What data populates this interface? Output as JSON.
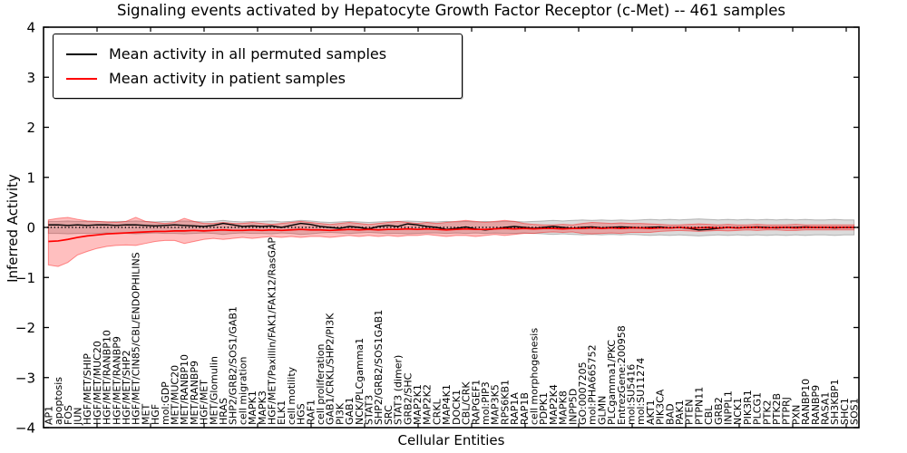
{
  "chart_data": {
    "type": "line",
    "title": "Signaling events activated by Hepatocyte Growth Factor Receptor (c-Met) -- 461 samples",
    "xlabel": "Cellular Entities",
    "ylabel": "Inferred Activity",
    "ylim": [
      -4,
      4
    ],
    "yticks": [
      -4,
      -3,
      -2,
      -1,
      0,
      1,
      2,
      3,
      4
    ],
    "grid": false,
    "legend_position": "upper left",
    "background": "#ffffff",
    "axis_color": "#000000",
    "zero_line": {
      "style": "dotted",
      "color": "#000000",
      "value": 0
    },
    "categories": [
      "AP1",
      "apoptosis",
      "FOS",
      "JUN",
      "HGF/MET/SHIP",
      "HGF/MET/MUC20",
      "HGF/MET/RANBP10",
      "HGF/MET/RANBP9",
      "HGF/MET/SHP2",
      "HGF/MET/CIN85/CBL/ENDOPHILINS",
      "MET",
      "HGF",
      "mol:GDP",
      "MET/MUC20",
      "MET/RANBP10",
      "MET/RANBP9",
      "HGF/MET",
      "MET/Glomulin",
      "HRAS",
      "SHP2/GRB2/SOS1/GAB1",
      "cell migration",
      "MAPK1",
      "MAPK3",
      "HGF/MET/Paxillin/FAK1/FAK12/RasGAP",
      "ELK1",
      "cell motility",
      "HGS",
      "RAF1",
      "cell proliferation",
      "GAB1/CRKL/SHP2/PI3K",
      "PI3K",
      "GAB1",
      "NCK/PLCgamma1",
      "STAT3",
      "SHP2/GRB2/SOS1GAB1",
      "SRC",
      "STAT3 (dimer)",
      "GRB2/SHC",
      "MAP2K1",
      "MAP2K2",
      "CRKL",
      "MAP4K1",
      "DOCK1",
      "CBL/CRK",
      "RAPGEF1",
      "mol:PIP3",
      "MAP3K5",
      "RPS6KB1",
      "RAP1A",
      "RAP1B",
      "cell morphogenesis",
      "PDPK1",
      "MAP2K4",
      "MAPK8",
      "INPP5D",
      "GO:0007205",
      "mol:PHA665752",
      "GLMN",
      "PLCgamma1/PKC",
      "EntrezGene:200958",
      "mol:SU5416",
      "mol:SU11274",
      "AKT1",
      "PIK3CA",
      "BAD",
      "PAK1",
      "PTEN",
      "PTPN11",
      "CBL",
      "GRB2",
      "INPPL1",
      "NCK1",
      "PIK3R1",
      "PLCG1",
      "PTK2",
      "PTK2B",
      "PTPRJ",
      "PXN",
      "RANBP10",
      "RANBP9",
      "RASA1",
      "SH3KBP1",
      "SHC1",
      "SOS1"
    ],
    "series": [
      {
        "name": "Mean activity in all permuted samples",
        "color": "#000000",
        "style": "solid",
        "values": [
          0.05,
          0.05,
          0.04,
          0.05,
          0.04,
          0.05,
          0.05,
          0.04,
          0.05,
          0.05,
          0.04,
          0.03,
          0.04,
          0.05,
          0.04,
          0.03,
          0.02,
          0.04,
          0.08,
          0.05,
          0.02,
          0.03,
          0.02,
          0.03,
          0.0,
          0.04,
          0.08,
          0.06,
          0.02,
          0.0,
          -0.02,
          0.02,
          0.0,
          -0.03,
          0.02,
          0.04,
          0.02,
          0.07,
          0.05,
          0.02,
          0.0,
          -0.04,
          -0.02,
          0.01,
          -0.03,
          -0.05,
          -0.03,
          0.0,
          0.02,
          0.0,
          -0.02,
          0.0,
          0.02,
          0.0,
          -0.02,
          0.0,
          0.01,
          -0.01,
          0.0,
          0.01,
          0.0,
          -0.01,
          0.0,
          0.01,
          -0.01,
          0.0,
          -0.02,
          -0.05,
          -0.04,
          -0.02,
          0.0,
          -0.01,
          0.0,
          0.01,
          0.0,
          -0.01,
          0.0,
          0.0,
          0.01,
          0.0,
          0.0,
          -0.01,
          0.0,
          0.0
        ],
        "band": {
          "color": "#000000",
          "opacity": 0.14,
          "upper": [
            0.12,
            0.12,
            0.13,
            0.12,
            0.12,
            0.12,
            0.11,
            0.12,
            0.12,
            0.13,
            0.12,
            0.11,
            0.12,
            0.12,
            0.13,
            0.12,
            0.11,
            0.12,
            0.14,
            0.12,
            0.11,
            0.12,
            0.12,
            0.13,
            0.11,
            0.12,
            0.14,
            0.13,
            0.11,
            0.1,
            0.11,
            0.12,
            0.11,
            0.1,
            0.11,
            0.12,
            0.12,
            0.13,
            0.12,
            0.11,
            0.11,
            0.12,
            0.11,
            0.12,
            0.11,
            0.12,
            0.11,
            0.12,
            0.12,
            0.11,
            0.12,
            0.13,
            0.14,
            0.13,
            0.14,
            0.15,
            0.14,
            0.15,
            0.14,
            0.15,
            0.14,
            0.15,
            0.16,
            0.15,
            0.16,
            0.15,
            0.16,
            0.17,
            0.16,
            0.15,
            0.16,
            0.15,
            0.16,
            0.15,
            0.16,
            0.15,
            0.16,
            0.15,
            0.16,
            0.15,
            0.15,
            0.16,
            0.15,
            0.15
          ],
          "lower": [
            -0.12,
            -0.12,
            -0.13,
            -0.12,
            -0.12,
            -0.12,
            -0.11,
            -0.12,
            -0.12,
            -0.13,
            -0.12,
            -0.11,
            -0.12,
            -0.12,
            -0.13,
            -0.12,
            -0.11,
            -0.12,
            -0.14,
            -0.12,
            -0.11,
            -0.12,
            -0.12,
            -0.13,
            -0.11,
            -0.12,
            -0.14,
            -0.13,
            -0.11,
            -0.1,
            -0.11,
            -0.12,
            -0.11,
            -0.1,
            -0.11,
            -0.12,
            -0.12,
            -0.13,
            -0.12,
            -0.11,
            -0.11,
            -0.12,
            -0.11,
            -0.12,
            -0.11,
            -0.12,
            -0.11,
            -0.12,
            -0.12,
            -0.11,
            -0.12,
            -0.13,
            -0.14,
            -0.13,
            -0.14,
            -0.15,
            -0.14,
            -0.15,
            -0.14,
            -0.15,
            -0.14,
            -0.15,
            -0.16,
            -0.15,
            -0.16,
            -0.15,
            -0.16,
            -0.17,
            -0.16,
            -0.15,
            -0.16,
            -0.15,
            -0.16,
            -0.15,
            -0.16,
            -0.15,
            -0.16,
            -0.15,
            -0.16,
            -0.15,
            -0.15,
            -0.16,
            -0.15,
            -0.15
          ]
        }
      },
      {
        "name": "Mean activity in patient samples",
        "color": "#ff0000",
        "style": "solid",
        "values": [
          -0.28,
          -0.27,
          -0.24,
          -0.2,
          -0.17,
          -0.15,
          -0.13,
          -0.12,
          -0.11,
          -0.1,
          -0.09,
          -0.08,
          -0.08,
          -0.07,
          -0.07,
          -0.06,
          -0.07,
          -0.06,
          -0.05,
          -0.06,
          -0.06,
          -0.05,
          -0.06,
          -0.05,
          -0.06,
          -0.05,
          -0.04,
          -0.05,
          -0.05,
          -0.06,
          -0.05,
          -0.04,
          -0.05,
          -0.04,
          -0.05,
          -0.04,
          -0.04,
          -0.03,
          -0.04,
          -0.03,
          -0.04,
          -0.05,
          -0.04,
          -0.03,
          -0.04,
          -0.04,
          -0.03,
          -0.02,
          -0.03,
          -0.02,
          -0.03,
          -0.02,
          -0.02,
          -0.03,
          -0.02,
          -0.02,
          -0.01,
          -0.02,
          -0.01,
          -0.02,
          -0.01,
          -0.01,
          -0.02,
          -0.01,
          -0.01,
          0.0,
          -0.01,
          -0.01,
          0.0,
          -0.01,
          0.0,
          -0.01,
          0.0,
          0.0,
          -0.01,
          0.0,
          0.0,
          -0.01,
          0.0,
          0.0,
          0.0,
          0.0,
          0.0,
          0.0
        ],
        "band": {
          "color": "#ff0000",
          "opacity": 0.25,
          "upper": [
            0.15,
            0.18,
            0.2,
            0.16,
            0.13,
            0.12,
            0.11,
            0.1,
            0.12,
            0.2,
            0.12,
            0.1,
            0.08,
            0.1,
            0.18,
            0.12,
            0.08,
            0.08,
            0.1,
            0.08,
            0.08,
            0.1,
            0.08,
            0.06,
            0.08,
            0.1,
            0.12,
            0.1,
            0.08,
            0.06,
            0.08,
            0.1,
            0.08,
            0.06,
            0.08,
            0.1,
            0.12,
            0.1,
            0.08,
            0.1,
            0.08,
            0.1,
            0.12,
            0.14,
            0.12,
            0.1,
            0.12,
            0.14,
            0.12,
            0.08,
            0.06,
            0.05,
            0.05,
            0.06,
            0.05,
            0.08,
            0.1,
            0.09,
            0.08,
            0.09,
            0.08,
            0.08,
            0.07,
            0.06,
            0.05,
            0.05,
            0.06,
            0.07,
            0.06,
            0.05,
            0.06,
            0.05,
            0.05,
            0.06,
            0.05,
            0.05,
            0.05,
            0.06,
            0.05,
            0.05,
            0.05,
            0.05,
            0.05,
            0.05
          ],
          "lower": [
            -0.75,
            -0.78,
            -0.7,
            -0.55,
            -0.48,
            -0.42,
            -0.38,
            -0.36,
            -0.35,
            -0.36,
            -0.32,
            -0.28,
            -0.26,
            -0.26,
            -0.32,
            -0.28,
            -0.24,
            -0.22,
            -0.24,
            -0.22,
            -0.2,
            -0.22,
            -0.2,
            -0.18,
            -0.2,
            -0.18,
            -0.2,
            -0.18,
            -0.18,
            -0.2,
            -0.18,
            -0.16,
            -0.18,
            -0.16,
            -0.18,
            -0.16,
            -0.18,
            -0.16,
            -0.16,
            -0.14,
            -0.16,
            -0.18,
            -0.16,
            -0.16,
            -0.18,
            -0.16,
            -0.14,
            -0.16,
            -0.14,
            -0.12,
            -0.12,
            -0.1,
            -0.09,
            -0.1,
            -0.09,
            -0.12,
            -0.13,
            -0.12,
            -0.11,
            -0.12,
            -0.1,
            -0.1,
            -0.1,
            -0.08,
            -0.07,
            -0.06,
            -0.07,
            -0.08,
            -0.07,
            -0.06,
            -0.07,
            -0.06,
            -0.05,
            -0.06,
            -0.05,
            -0.05,
            -0.06,
            -0.06,
            -0.05,
            -0.05,
            -0.05,
            -0.05,
            -0.05,
            -0.05
          ]
        }
      }
    ]
  }
}
